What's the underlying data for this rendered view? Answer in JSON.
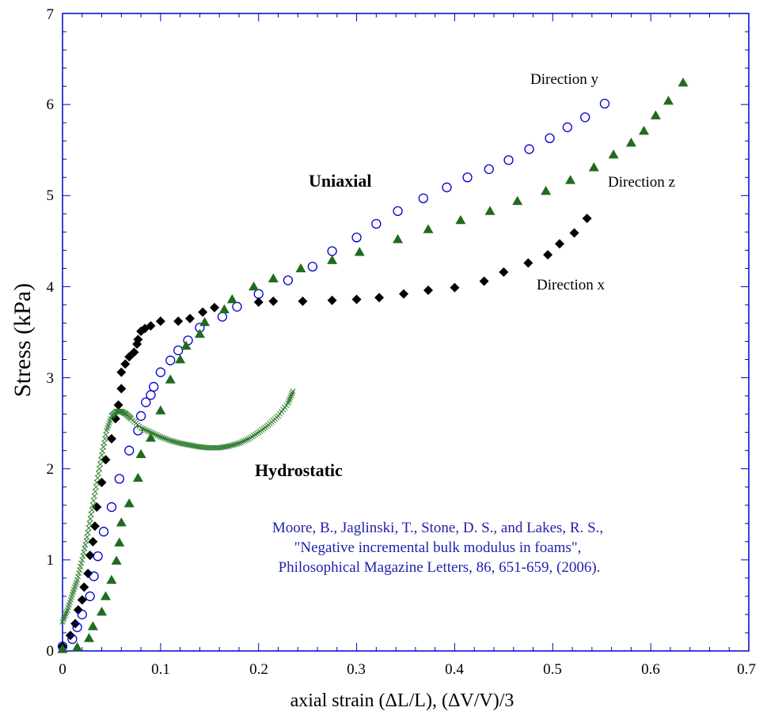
{
  "chart_data": {
    "type": "scatter",
    "xlabel": "axial strain (ΔL/L),  (ΔV/V)/3",
    "ylabel": "Stress (kPa)",
    "xlim": [
      0,
      0.7
    ],
    "ylim": [
      0,
      7
    ],
    "x_ticks": [
      "0",
      "0.1",
      "0.2",
      "0.3",
      "0.4",
      "0.5",
      "0.6",
      "0.7"
    ],
    "y_ticks": [
      "0",
      "1",
      "2",
      "3",
      "4",
      "5",
      "6",
      "7"
    ],
    "series": [
      {
        "name": "Direction x",
        "marker": "filled-diamond",
        "color": "#000000",
        "points": [
          [
            0,
            0.05
          ],
          [
            0.008,
            0.17
          ],
          [
            0.013,
            0.3
          ],
          [
            0.016,
            0.45
          ],
          [
            0.02,
            0.56
          ],
          [
            0.022,
            0.7
          ],
          [
            0.026,
            0.85
          ],
          [
            0.028,
            1.05
          ],
          [
            0.031,
            1.2
          ],
          [
            0.033,
            1.37
          ],
          [
            0.035,
            1.58
          ],
          [
            0.04,
            1.85
          ],
          [
            0.044,
            2.1
          ],
          [
            0.05,
            2.33
          ],
          [
            0.054,
            2.55
          ],
          [
            0.057,
            2.7
          ],
          [
            0.06,
            2.88
          ],
          [
            0.06,
            3.06
          ],
          [
            0.064,
            3.15
          ],
          [
            0.068,
            3.23
          ],
          [
            0.073,
            3.28
          ],
          [
            0.076,
            3.37
          ],
          [
            0.077,
            3.42
          ],
          [
            0.08,
            3.51
          ],
          [
            0.084,
            3.54
          ],
          [
            0.09,
            3.57
          ],
          [
            0.1,
            3.62
          ],
          [
            0.118,
            3.62
          ],
          [
            0.13,
            3.65
          ],
          [
            0.143,
            3.72
          ],
          [
            0.155,
            3.77
          ],
          [
            0.2,
            3.83
          ],
          [
            0.215,
            3.84
          ],
          [
            0.245,
            3.84
          ],
          [
            0.275,
            3.85
          ],
          [
            0.3,
            3.86
          ],
          [
            0.323,
            3.88
          ],
          [
            0.348,
            3.92
          ],
          [
            0.373,
            3.96
          ],
          [
            0.4,
            3.99
          ],
          [
            0.43,
            4.06
          ],
          [
            0.45,
            4.16
          ],
          [
            0.475,
            4.26
          ],
          [
            0.495,
            4.35
          ],
          [
            0.507,
            4.47
          ],
          [
            0.522,
            4.59
          ],
          [
            0.535,
            4.75
          ]
        ]
      },
      {
        "name": "Direction y",
        "marker": "open-circle",
        "color": "#0000cc",
        "points": [
          [
            0,
            0.05
          ],
          [
            0.01,
            0.13
          ],
          [
            0.015,
            0.26
          ],
          [
            0.02,
            0.4
          ],
          [
            0.028,
            0.6
          ],
          [
            0.032,
            0.82
          ],
          [
            0.036,
            1.04
          ],
          [
            0.042,
            1.31
          ],
          [
            0.05,
            1.58
          ],
          [
            0.058,
            1.89
          ],
          [
            0.068,
            2.2
          ],
          [
            0.077,
            2.42
          ],
          [
            0.08,
            2.58
          ],
          [
            0.085,
            2.73
          ],
          [
            0.09,
            2.81
          ],
          [
            0.093,
            2.9
          ],
          [
            0.1,
            3.06
          ],
          [
            0.11,
            3.19
          ],
          [
            0.118,
            3.3
          ],
          [
            0.128,
            3.41
          ],
          [
            0.14,
            3.55
          ],
          [
            0.163,
            3.67
          ],
          [
            0.178,
            3.78
          ],
          [
            0.2,
            3.92
          ],
          [
            0.23,
            4.07
          ],
          [
            0.255,
            4.22
          ],
          [
            0.275,
            4.39
          ],
          [
            0.3,
            4.54
          ],
          [
            0.32,
            4.69
          ],
          [
            0.342,
            4.83
          ],
          [
            0.368,
            4.97
          ],
          [
            0.392,
            5.09
          ],
          [
            0.413,
            5.2
          ],
          [
            0.435,
            5.29
          ],
          [
            0.455,
            5.39
          ],
          [
            0.476,
            5.51
          ],
          [
            0.497,
            5.63
          ],
          [
            0.515,
            5.75
          ],
          [
            0.533,
            5.86
          ],
          [
            0.553,
            6.01
          ]
        ]
      },
      {
        "name": "Direction z",
        "marker": "filled-triangle",
        "color": "#1f6b1f",
        "points": [
          [
            0,
            0.02
          ],
          [
            0.015,
            0.04
          ],
          [
            0.027,
            0.14
          ],
          [
            0.031,
            0.27
          ],
          [
            0.04,
            0.43
          ],
          [
            0.044,
            0.6
          ],
          [
            0.05,
            0.78
          ],
          [
            0.055,
            0.99
          ],
          [
            0.058,
            1.19
          ],
          [
            0.06,
            1.41
          ],
          [
            0.068,
            1.62
          ],
          [
            0.077,
            1.9
          ],
          [
            0.08,
            2.16
          ],
          [
            0.09,
            2.34
          ],
          [
            0.1,
            2.64
          ],
          [
            0.11,
            2.98
          ],
          [
            0.12,
            3.2
          ],
          [
            0.126,
            3.35
          ],
          [
            0.14,
            3.48
          ],
          [
            0.145,
            3.61
          ],
          [
            0.165,
            3.75
          ],
          [
            0.173,
            3.86
          ],
          [
            0.195,
            4.0
          ],
          [
            0.215,
            4.09
          ],
          [
            0.243,
            4.2
          ],
          [
            0.275,
            4.29
          ],
          [
            0.303,
            4.38
          ],
          [
            0.342,
            4.52
          ],
          [
            0.373,
            4.63
          ],
          [
            0.406,
            4.73
          ],
          [
            0.436,
            4.83
          ],
          [
            0.464,
            4.94
          ],
          [
            0.493,
            5.05
          ],
          [
            0.518,
            5.17
          ],
          [
            0.542,
            5.31
          ],
          [
            0.562,
            5.45
          ],
          [
            0.58,
            5.58
          ],
          [
            0.593,
            5.71
          ],
          [
            0.605,
            5.88
          ],
          [
            0.618,
            6.04
          ],
          [
            0.633,
            6.24
          ]
        ]
      },
      {
        "name": "Hydrostatic",
        "marker": "x-cross",
        "color": "#2e7d2e",
        "points": [
          [
            0,
            0.32
          ],
          [
            0.005,
            0.45
          ],
          [
            0.01,
            0.62
          ],
          [
            0.015,
            0.78
          ],
          [
            0.02,
            1.0
          ],
          [
            0.025,
            1.25
          ],
          [
            0.03,
            1.55
          ],
          [
            0.035,
            1.85
          ],
          [
            0.04,
            2.15
          ],
          [
            0.045,
            2.42
          ],
          [
            0.05,
            2.58
          ],
          [
            0.055,
            2.63
          ],
          [
            0.06,
            2.63
          ],
          [
            0.065,
            2.6
          ],
          [
            0.07,
            2.55
          ],
          [
            0.08,
            2.45
          ],
          [
            0.09,
            2.4
          ],
          [
            0.1,
            2.35
          ],
          [
            0.11,
            2.31
          ],
          [
            0.12,
            2.28
          ],
          [
            0.13,
            2.26
          ],
          [
            0.14,
            2.24
          ],
          [
            0.15,
            2.23
          ],
          [
            0.16,
            2.23
          ],
          [
            0.17,
            2.25
          ],
          [
            0.18,
            2.28
          ],
          [
            0.19,
            2.33
          ],
          [
            0.2,
            2.4
          ],
          [
            0.21,
            2.48
          ],
          [
            0.22,
            2.58
          ],
          [
            0.23,
            2.72
          ],
          [
            0.235,
            2.85
          ]
        ]
      }
    ],
    "annotations": {
      "uniaxial": "Uniaxial",
      "hydrostatic": "Hydrostatic",
      "direction_x": "Direction x",
      "direction_y": "Direction y",
      "direction_z": "Direction z"
    },
    "citation": [
      "Moore, B., Jaglinski, T., Stone, D. S., and Lakes, R. S.,",
      "\"Negative incremental bulk modulus in foams\",",
      "Philosophical Magazine Letters, 86, 651-659, (2006)."
    ],
    "colors": {
      "frame": "#0000cc",
      "citation": "#2222aa"
    }
  }
}
